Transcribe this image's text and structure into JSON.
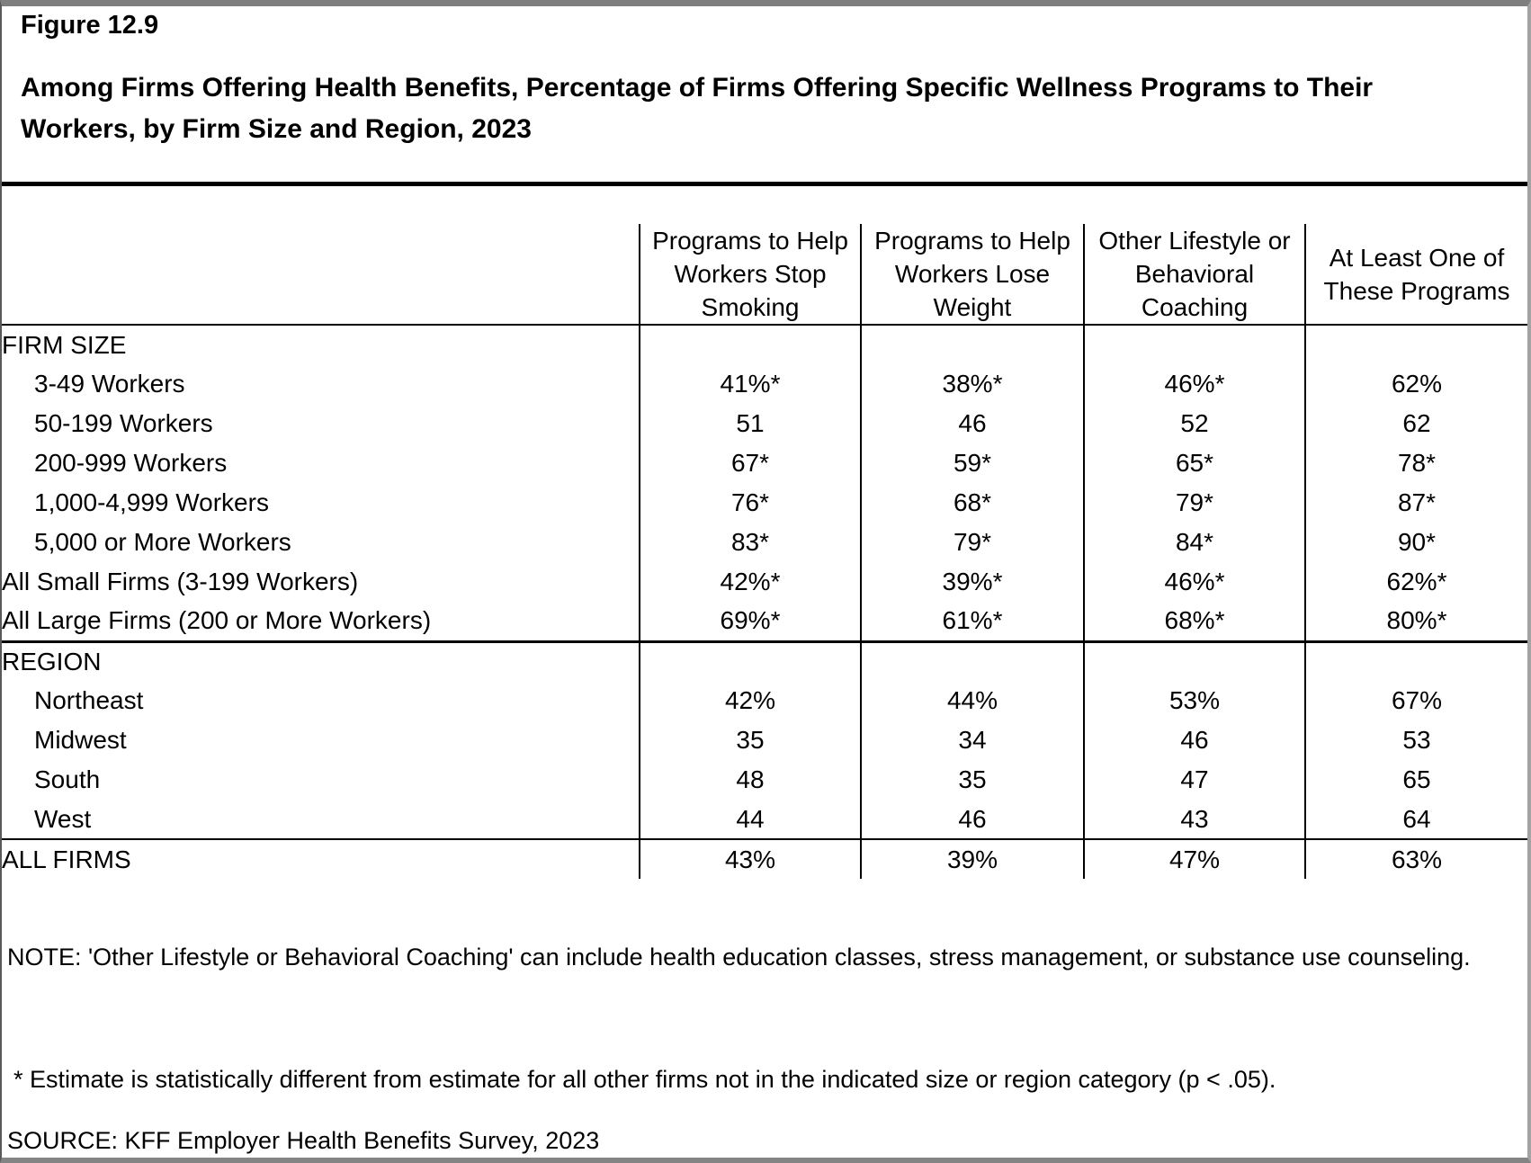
{
  "figure": {
    "number": "Figure 12.9",
    "title": "Among Firms Offering Health Benefits, Percentage of Firms Offering Specific Wellness Programs to Their Workers, by Firm Size and Region, 2023"
  },
  "chart_data": {
    "type": "table",
    "columns": [
      "Programs to Help Workers Stop Smoking",
      "Programs to Help Workers Lose Weight",
      "Other Lifestyle or Behavioral Coaching",
      "At Least One of These Programs"
    ],
    "sections": [
      {
        "header": "FIRM SIZE",
        "rows": [
          {
            "label": "3-49 Workers",
            "indent": true,
            "bold": false,
            "values": [
              "41%*",
              "38%*",
              "46%*",
              "62%"
            ]
          },
          {
            "label": "50-199 Workers",
            "indent": true,
            "bold": false,
            "values": [
              "51",
              "46",
              "52",
              "62"
            ]
          },
          {
            "label": "200-999 Workers",
            "indent": true,
            "bold": false,
            "values": [
              "67*",
              "59*",
              "65*",
              "78*"
            ]
          },
          {
            "label": "1,000-4,999 Workers",
            "indent": true,
            "bold": false,
            "values": [
              "76*",
              "68*",
              "79*",
              "87*"
            ]
          },
          {
            "label": "5,000 or More Workers",
            "indent": true,
            "bold": false,
            "values": [
              "83*",
              "79*",
              "84*",
              "90*"
            ]
          },
          {
            "label": "All Small Firms (3-199 Workers)",
            "indent": false,
            "bold": true,
            "values": [
              "42%*",
              "39%*",
              "46%*",
              "62%*"
            ]
          },
          {
            "label": "All Large Firms (200 or More Workers)",
            "indent": false,
            "bold": true,
            "values": [
              "69%*",
              "61%*",
              "68%*",
              "80%*"
            ]
          }
        ]
      },
      {
        "header": "REGION",
        "rows": [
          {
            "label": "Northeast",
            "indent": true,
            "bold": false,
            "values": [
              "42%",
              "44%",
              "53%",
              "67%"
            ]
          },
          {
            "label": "Midwest",
            "indent": true,
            "bold": false,
            "values": [
              "35",
              "34",
              "46",
              "53"
            ]
          },
          {
            "label": "South",
            "indent": true,
            "bold": false,
            "values": [
              "48",
              "35",
              "47",
              "65"
            ]
          },
          {
            "label": "West",
            "indent": true,
            "bold": false,
            "values": [
              "44",
              "46",
              "43",
              "64"
            ]
          }
        ]
      }
    ],
    "total_row": {
      "label": "ALL FIRMS",
      "values": [
        "43%",
        "39%",
        "47%",
        "63%"
      ]
    }
  },
  "notes": {
    "main": "NOTE: 'Other Lifestyle or Behavioral Coaching' can include health education classes, stress management, or substance use counseling.",
    "asterisk": "* Estimate is statistically different from estimate for all other firms not in the indicated size or region category (p < .05).",
    "source": "SOURCE: KFF Employer Health Benefits Survey, 2023"
  },
  "colors": {
    "text": "#000000",
    "rule": "#000000",
    "frame_gray": "#7f7f7f"
  }
}
